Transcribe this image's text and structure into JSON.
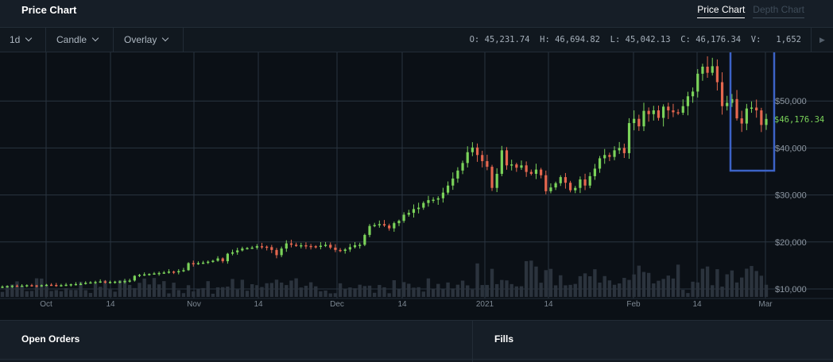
{
  "header": {
    "title": "Price Chart",
    "tabs": [
      {
        "label": "Price Chart",
        "active": true
      },
      {
        "label": "Depth Chart",
        "active": false
      }
    ]
  },
  "toolbar": {
    "interval": "1d",
    "chart_type": "Candle",
    "overlay": "Overlay",
    "ohlc": {
      "open_label": "O:",
      "open": "45,231.74",
      "high_label": "H:",
      "high": "46,694.82",
      "low_label": "L:",
      "low": "45,042.13",
      "close_label": "C:",
      "close": "46,176.34",
      "volume_label": "V:",
      "volume": "1,652"
    },
    "play_icon": "play-icon"
  },
  "chart": {
    "current_price_label": "$46,176.34",
    "y_ticks": [
      "$10,000",
      "$20,000",
      "$30,000",
      "$40,000",
      "$50,000"
    ],
    "x_ticks": [
      "Oct",
      "14",
      "Nov",
      "14",
      "Dec",
      "14",
      "2021",
      "14",
      "Feb",
      "14",
      "Mar"
    ],
    "colors": {
      "up": "#7bd35a",
      "down": "#e5674f",
      "highlight_box": "#3c63c7",
      "volume": "#2b333d"
    }
  },
  "chart_data": {
    "type": "candlestick",
    "ylim": [
      9000,
      60000
    ],
    "y_ticks": [
      10000,
      20000,
      30000,
      40000,
      50000
    ],
    "x_ticks": [
      "Oct",
      "14",
      "Nov",
      "14",
      "Dec",
      "14",
      "2021",
      "14",
      "Feb",
      "14",
      "Mar"
    ],
    "start_date": "2020-09-23",
    "closes": [
      10500,
      10600,
      10700,
      10650,
      10700,
      10800,
      10750,
      10700,
      10800,
      10900,
      10850,
      10700,
      10800,
      10900,
      11000,
      11050,
      11100,
      11300,
      11400,
      11500,
      11600,
      11400,
      11500,
      11550,
      11600,
      11700,
      11800,
      12800,
      13000,
      13100,
      13200,
      13300,
      13400,
      13500,
      13700,
      13600,
      13800,
      14000,
      15500,
      15300,
      15500,
      15600,
      15800,
      16000,
      16500,
      15900,
      17500,
      17800,
      18200,
      18600,
      18700,
      18800,
      19100,
      19000,
      18900,
      18300,
      17200,
      18600,
      19700,
      19400,
      19200,
      19300,
      19150,
      19100,
      19000,
      19200,
      19400,
      18800,
      18300,
      18100,
      18400,
      18900,
      19300,
      19400,
      21500,
      23400,
      23600,
      23800,
      23500,
      22900,
      24000,
      24500,
      25800,
      26200,
      27000,
      27300,
      28300,
      28900,
      29000,
      29300,
      30500,
      32000,
      33500,
      35200,
      36800,
      39100,
      40100,
      38500,
      37200,
      36000,
      31500,
      34500,
      39500,
      36300,
      36500,
      35800,
      36300,
      34900,
      34500,
      35400,
      34200,
      30800,
      31600,
      32500,
      33800,
      32600,
      31000,
      31500,
      33300,
      32000,
      34000,
      35600,
      37800,
      38500,
      38100,
      39500,
      40000,
      38900,
      45300,
      46200,
      44600,
      47900,
      47200,
      48000,
      46400,
      48800,
      48000,
      47600,
      47500,
      48900,
      51000,
      52000,
      55800,
      57300,
      56000,
      57400,
      54000,
      48900,
      49600,
      50400,
      46300,
      45200,
      48400,
      48600,
      48000,
      44900,
      46176
    ]
  }
}
